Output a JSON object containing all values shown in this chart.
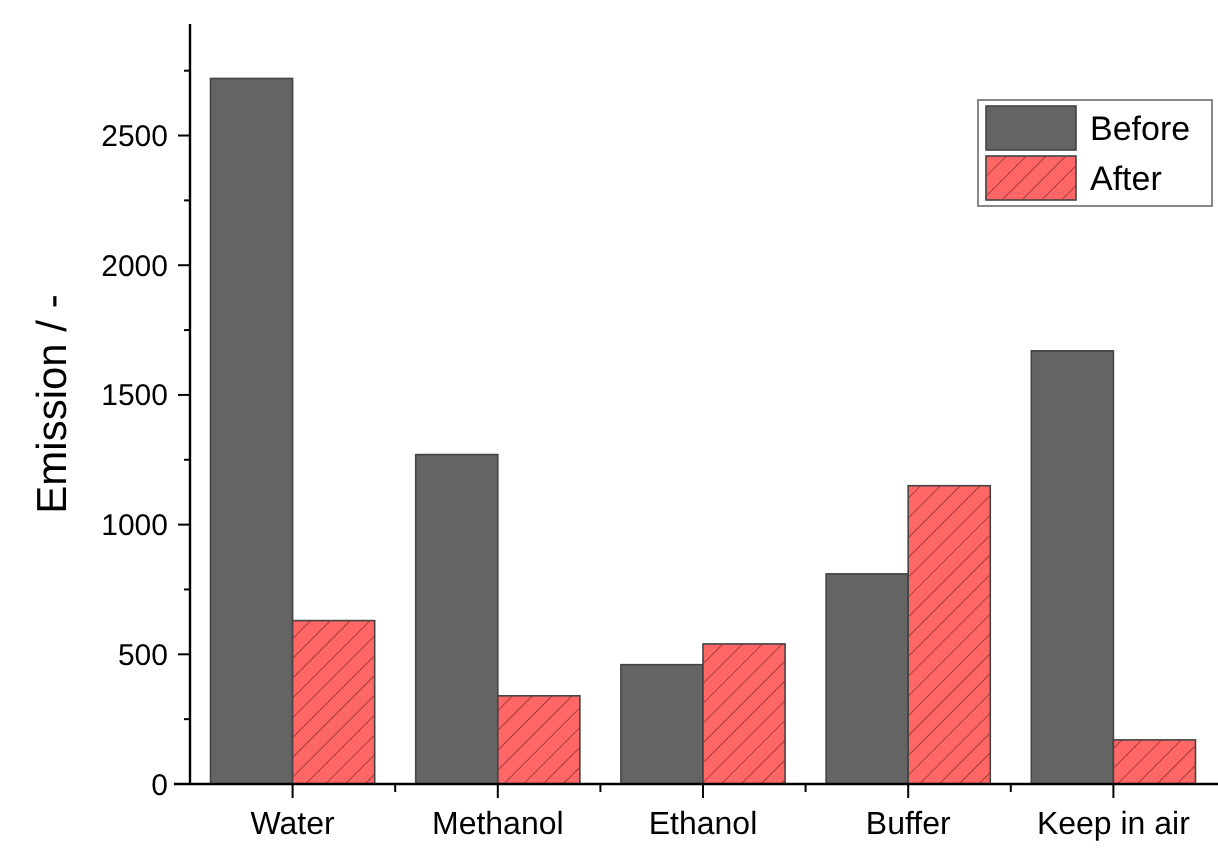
{
  "chart_data": {
    "type": "bar",
    "ylabel": "Emission / -",
    "categories": [
      "Water",
      "Methanol",
      "Ethanol",
      "Buffer",
      "Keep in air"
    ],
    "series": [
      {
        "name": "Before",
        "color": "#646464",
        "values": [
          2720,
          1270,
          460,
          810,
          1670
        ]
      },
      {
        "name": "After",
        "color": "#ff6666",
        "values": [
          630,
          340,
          540,
          1150,
          170
        ]
      }
    ],
    "ylim": [
      0,
      2930
    ],
    "yticks": [
      0,
      {
        "value": 250,
        "label": null
      },
      500,
      {
        "value": 750,
        "label": null
      },
      1000,
      {
        "value": 1250,
        "label": null
      },
      1500,
      {
        "value": 1750,
        "label": null
      },
      2000,
      {
        "value": 2250,
        "label": null
      },
      2500,
      {
        "value": 2750,
        "label": null
      }
    ],
    "grid": false,
    "legend": "top right"
  }
}
